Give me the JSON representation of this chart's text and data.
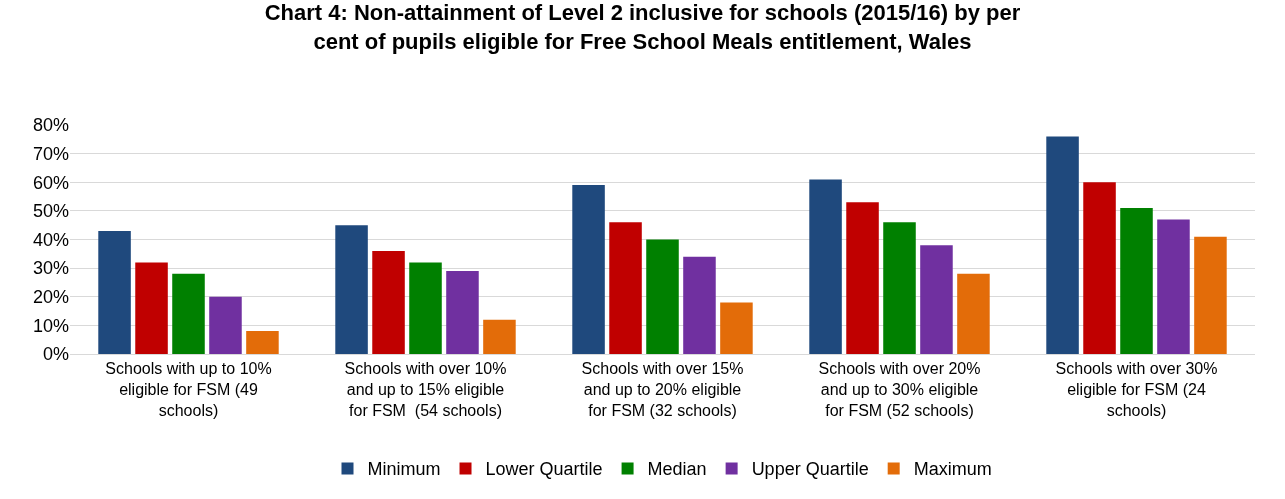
{
  "chart_data": {
    "type": "bar",
    "title": "Chart 4: Non-attainment of Level 2 inclusive for schools (2015/16) by per cent of pupils eligible for Free School Meals entitlement, Wales",
    "categories": [
      "Schools with up to 10% eligible for FSM (49 schools)",
      "Schools with over 10% and up to 15% eligible for FSM  (54 schools)",
      "Schools with over 15% and up to 20% eligible for FSM (32 schools)",
      "Schools with over 20% and up to 30% eligible for FSM (52 schools)",
      "Schools with over 30% eligible for FSM (24 schools)"
    ],
    "series": [
      {
        "name": "Minimum",
        "color": "#1f497d",
        "values": [
          43,
          45,
          59,
          61,
          76
        ]
      },
      {
        "name": "Lower Quartile",
        "color": "#c00000",
        "values": [
          32,
          36,
          46,
          53,
          60
        ]
      },
      {
        "name": "Median",
        "color": "#008000",
        "values": [
          28,
          32,
          40,
          46,
          51
        ]
      },
      {
        "name": "Upper Quartile",
        "color": "#7030a0",
        "values": [
          20,
          29,
          34,
          38,
          47
        ]
      },
      {
        "name": "Maximum",
        "color": "#e36c09",
        "values": [
          8,
          12,
          18,
          28,
          41
        ]
      }
    ],
    "ylim": [
      0,
      80
    ],
    "yticks": [
      {
        "value": 0,
        "label": "0%"
      },
      {
        "value": 10,
        "label": "10%"
      },
      {
        "value": 20,
        "label": "20%"
      },
      {
        "value": 30,
        "label": "30%"
      },
      {
        "value": 40,
        "label": "40%"
      },
      {
        "value": 50,
        "label": "50%"
      },
      {
        "value": 60,
        "label": "60%"
      },
      {
        "value": 70,
        "label": "70%"
      },
      {
        "value": 80,
        "label": "80%"
      }
    ],
    "grid": "y",
    "legend": "bottom"
  }
}
